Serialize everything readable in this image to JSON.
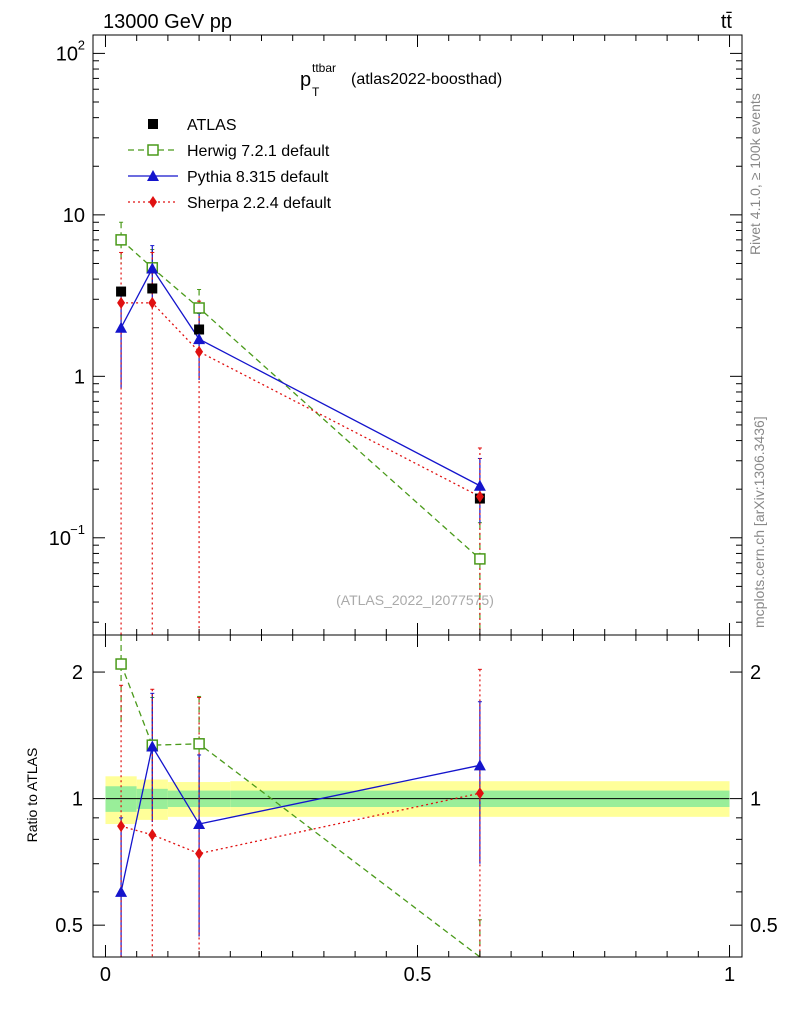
{
  "header": {
    "energy_label": "13000 GeV pp",
    "process_label": "tt̄"
  },
  "side_labels": {
    "rivet": "Rivet 4.1.0, ≥ 100k events",
    "mcplots": "mcplots.cern.ch [arXiv:1306.3436]"
  },
  "chart_data": [
    {
      "type": "scatter",
      "panel": "main",
      "title_main": "p",
      "title_sup": "ttbar",
      "title_sub": "T",
      "title_rest": "(atlas2022-boosthad)",
      "analysis_label": "(ATLAS_2022_I2077575)",
      "yscale": "log",
      "ylim": [
        0.025,
        130
      ],
      "xlim": [
        -0.02,
        1.02
      ],
      "y_ticks": [
        {
          "value": 100,
          "base": "10",
          "exp": "2"
        },
        {
          "value": 10,
          "base": "10",
          "exp": ""
        },
        {
          "value": 1,
          "base": "1",
          "exp": ""
        },
        {
          "value": 0.1,
          "base": "10",
          "exp": "−1"
        }
      ],
      "legend_position": "top-left",
      "series": [
        {
          "name": "ATLAS",
          "color": "#000000",
          "marker": "square-filled",
          "line": "none",
          "x": [
            0.025,
            0.075,
            0.15,
            0.6
          ],
          "y": [
            3.35,
            3.5,
            1.95,
            0.175
          ],
          "yerr_low": [
            0,
            0,
            0,
            0
          ],
          "yerr_high": [
            0,
            0,
            0,
            0
          ]
        },
        {
          "name": "Herwig 7.2.1 default",
          "color": "#4a9a1a",
          "marker": "square-open",
          "line": "dashed",
          "x": [
            0.025,
            0.075,
            0.15,
            0.6
          ],
          "y": [
            7.0,
            4.7,
            2.65,
            0.074
          ],
          "yerr_low": [
            2.0,
            1.4,
            0.8,
            0.05
          ],
          "yerr_high": [
            2.0,
            1.4,
            0.8,
            0.05
          ]
        },
        {
          "name": "Pythia 8.315 default",
          "color": "#1414cc",
          "marker": "triangle",
          "line": "solid",
          "x": [
            0.025,
            0.075,
            0.15,
            0.6
          ],
          "y": [
            2.0,
            4.65,
            1.7,
            0.21
          ],
          "yerr_low": [
            1.15,
            1.6,
            0.75,
            0.09
          ],
          "yerr_high": [
            1.15,
            1.8,
            0.75,
            0.1
          ]
        },
        {
          "name": "Sherpa 2.2.4 default",
          "color": "#e01010",
          "marker": "diamond",
          "line": "dotted",
          "x": [
            0.025,
            0.075,
            0.15,
            0.6
          ],
          "y": [
            2.85,
            2.85,
            1.42,
            0.18
          ],
          "yerr_low": [
            2.84,
            2.84,
            1.41,
            0.179
          ],
          "yerr_high": [
            3.0,
            3.0,
            1.5,
            0.18
          ]
        }
      ]
    },
    {
      "type": "scatter",
      "panel": "ratio",
      "ylabel": "Ratio to ATLAS",
      "yscale": "log",
      "ylim": [
        0.42,
        2.45
      ],
      "xlim": [
        -0.02,
        1.02
      ],
      "y_ticks": [
        {
          "value": 2,
          "label": "2"
        },
        {
          "value": 1,
          "label": "1"
        },
        {
          "value": 0.5,
          "label": "0.5"
        }
      ],
      "x_ticks": [
        {
          "value": 0,
          "label": "0"
        },
        {
          "value": 0.5,
          "label": "0.5"
        },
        {
          "value": 1,
          "label": "1"
        }
      ],
      "bands": {
        "inner_color": "#99ee99",
        "outer_color": "#ffff99",
        "segments": [
          {
            "x0": 0.0,
            "x1": 0.05,
            "inner_lo": 0.93,
            "inner_hi": 1.07,
            "outer_lo": 0.87,
            "outer_hi": 1.13
          },
          {
            "x0": 0.05,
            "x1": 0.1,
            "inner_lo": 0.945,
            "inner_hi": 1.055,
            "outer_lo": 0.89,
            "outer_hi": 1.11
          },
          {
            "x0": 0.1,
            "x1": 0.2,
            "inner_lo": 0.955,
            "inner_hi": 1.045,
            "outer_lo": 0.905,
            "outer_hi": 1.095
          },
          {
            "x0": 0.2,
            "x1": 1.0,
            "inner_lo": 0.955,
            "inner_hi": 1.045,
            "outer_lo": 0.905,
            "outer_hi": 1.1
          }
        ]
      },
      "series": [
        {
          "name": "Herwig 7.2.1 default",
          "color": "#4a9a1a",
          "marker": "square-open",
          "line": "dashed",
          "x": [
            0.025,
            0.075,
            0.15,
            0.6
          ],
          "y": [
            2.09,
            1.34,
            1.35,
            0.415
          ],
          "yerr_low": [
            0.6,
            0.4,
            0.4,
            0.1
          ],
          "yerr_high": [
            0.6,
            0.4,
            0.4,
            0.1
          ]
        },
        {
          "name": "Pythia 8.315 default",
          "color": "#1414cc",
          "marker": "triangle",
          "line": "solid",
          "x": [
            0.025,
            0.075,
            0.15,
            0.6
          ],
          "y": [
            0.6,
            1.33,
            0.87,
            1.2
          ],
          "yerr_low": [
            0.3,
            0.45,
            0.4,
            0.5
          ],
          "yerr_high": [
            0.3,
            0.45,
            0.4,
            0.5
          ]
        },
        {
          "name": "Sherpa 2.2.4 default",
          "color": "#e01010",
          "marker": "diamond",
          "line": "dotted",
          "x": [
            0.025,
            0.075,
            0.15,
            0.6
          ],
          "y": [
            0.86,
            0.82,
            0.74,
            1.03
          ],
          "yerr_low": [
            0.85,
            0.81,
            0.73,
            1.0
          ],
          "yerr_high": [
            1.0,
            1.0,
            1.0,
            1.0
          ]
        }
      ]
    }
  ]
}
